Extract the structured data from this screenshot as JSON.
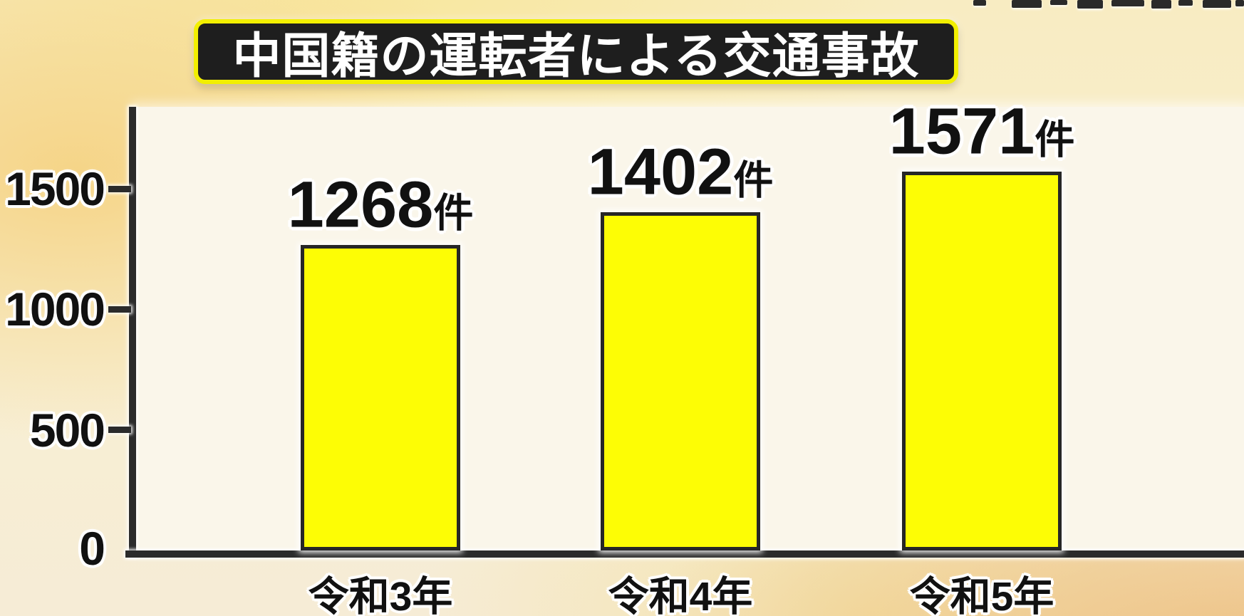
{
  "chart_data": {
    "type": "bar",
    "title": "中国籍の運転者による交通事故",
    "categories": [
      "令和3年",
      "令和4年",
      "令和5年"
    ],
    "values": [
      1268,
      1402,
      1571
    ],
    "value_labels": [
      "1268",
      "1402",
      "1571"
    ],
    "unit_suffix": "件",
    "yticks": [
      0,
      500,
      1000,
      1500
    ],
    "ylim": [
      0,
      1800
    ],
    "xlabel": "",
    "ylabel": "",
    "grid": false,
    "legend_position": "none",
    "colors": {
      "bar_fill": "#fdfd05",
      "bar_outline": "#262626",
      "axis": "#2b2b2b",
      "label_text": "#111111",
      "title_text": "#ffffff",
      "title_background": "#1e1e1e",
      "title_border": "#f2ef00",
      "background_warm_gold": "#f5d384",
      "background_orange_corner": "#ecba76",
      "plot_background": "#faf6ea"
    }
  }
}
